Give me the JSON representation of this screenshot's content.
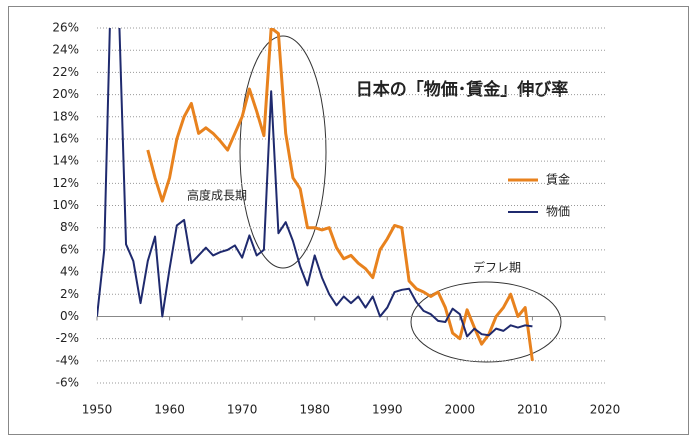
{
  "chart_data": {
    "type": "line",
    "title": "日本の「物価･賃金」伸び率",
    "annotations": [
      "高度成長期",
      "デフレ期"
    ],
    "x": [
      1950,
      1951,
      1952,
      1953,
      1954,
      1955,
      1956,
      1957,
      1958,
      1959,
      1960,
      1961,
      1962,
      1963,
      1964,
      1965,
      1966,
      1967,
      1968,
      1969,
      1970,
      1971,
      1972,
      1973,
      1974,
      1975,
      1976,
      1977,
      1978,
      1979,
      1980,
      1981,
      1982,
      1983,
      1984,
      1985,
      1986,
      1987,
      1988,
      1989,
      1990,
      1991,
      1992,
      1993,
      1994,
      1995,
      1996,
      1997,
      1998,
      1999,
      2000,
      2001,
      2002,
      2003,
      2004,
      2005,
      2006,
      2007,
      2008,
      2009,
      2010
    ],
    "series": [
      {
        "name": "賃金",
        "color": "#e8821e",
        "values": [
          null,
          null,
          null,
          null,
          null,
          null,
          null,
          15,
          12.5,
          10.4,
          12.5,
          16,
          18,
          19.2,
          16.5,
          17,
          16.5,
          15.8,
          15,
          16.5,
          18,
          20.5,
          18.5,
          16.3,
          26,
          25.5,
          16.5,
          12.5,
          11.5,
          8,
          8,
          7.8,
          8,
          6.2,
          5.2,
          5.5,
          4.8,
          4.3,
          3.5,
          6,
          7,
          8.2,
          8,
          3.2,
          2.5,
          2.2,
          1.8,
          2.2,
          0.8,
          -1.5,
          -2,
          0.6,
          -1,
          -2.5,
          -1.6,
          0,
          0.8,
          2,
          0,
          0.8,
          -4
        ]
      },
      {
        "name": "物価",
        "color": "#1f2a6e",
        "values": [
          0,
          6,
          32,
          28,
          6.5,
          5,
          1.2,
          5,
          7.2,
          0,
          4.3,
          8.2,
          8.7,
          4.8,
          5.5,
          6.2,
          5.5,
          5.8,
          6,
          6.4,
          5.3,
          7.3,
          5.5,
          6,
          20.3,
          7.5,
          8.5,
          6.8,
          4.5,
          2.8,
          5.5,
          3.5,
          2,
          1,
          1.8,
          1.2,
          1.8,
          0.8,
          1.8,
          0,
          0.8,
          2.2,
          2.4,
          2.5,
          1.3,
          0.5,
          0.2,
          -0.4,
          -0.5,
          0.7,
          0.2,
          -1.8,
          -1.1,
          -1.6,
          -1.7,
          -1.1,
          -1.3,
          -0.8,
          -1,
          -0.8,
          -0.9
        ]
      }
    ],
    "xlim": [
      1950,
      2020
    ],
    "xticks": [
      1950,
      1960,
      1970,
      1980,
      1990,
      2000,
      2010,
      2020
    ],
    "ylim": [
      -6,
      26
    ],
    "yticks": [
      {
        "value": -6,
        "label": "-6%"
      },
      {
        "value": -4,
        "label": "-4%"
      },
      {
        "value": -2,
        "label": "-2%"
      },
      {
        "value": 0,
        "label": "0%"
      },
      {
        "value": 2,
        "label": "2%"
      },
      {
        "value": 4,
        "label": "4%"
      },
      {
        "value": 6,
        "label": "6%"
      },
      {
        "value": 8,
        "label": "8%"
      },
      {
        "value": 10,
        "label": "10%"
      },
      {
        "value": 12,
        "label": "12%"
      },
      {
        "value": 14,
        "label": "14%"
      },
      {
        "value": 16,
        "label": "16%"
      },
      {
        "value": 18,
        "label": "18%"
      },
      {
        "value": 20,
        "label": "20%"
      },
      {
        "value": 22,
        "label": "22%"
      },
      {
        "value": 24,
        "label": "24%"
      },
      {
        "value": 26,
        "label": "26%"
      }
    ],
    "grid": true,
    "legend": "right"
  }
}
